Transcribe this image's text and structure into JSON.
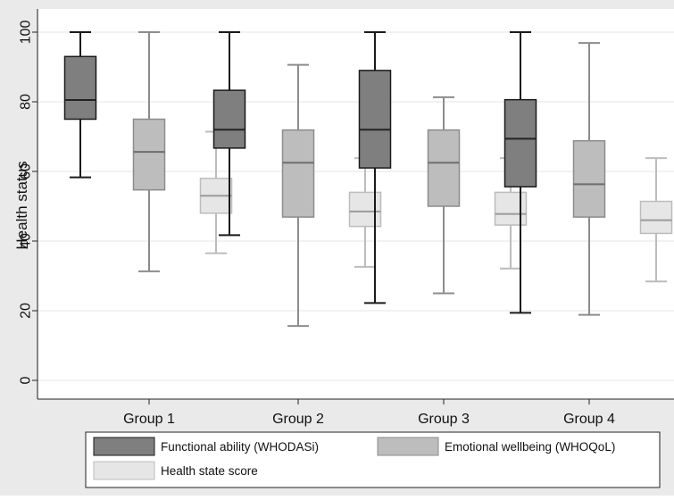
{
  "chart_data": {
    "type": "box",
    "ylabel": "Health status",
    "xlabel": "",
    "ylim": [
      0,
      100
    ],
    "yticks": [
      0,
      20,
      40,
      60,
      80,
      100
    ],
    "grid": true,
    "legend_position": "bottom",
    "categories": [
      "Group 1",
      "Group 2",
      "Group 3",
      "Group 4"
    ],
    "series": [
      {
        "name": "Functional ability (WHODASi)",
        "color": "#7f7f7f",
        "median_color": "#222222",
        "boxes": [
          {
            "min": 58.3,
            "q1": 75,
            "median": 80.5,
            "q3": 93,
            "max": 100
          },
          {
            "min": 41.7,
            "q1": 66.7,
            "median": 72,
            "q3": 83.3,
            "max": 100
          },
          {
            "min": 22.2,
            "q1": 61,
            "median": 72,
            "q3": 89,
            "max": 100
          },
          {
            "min": 19.4,
            "q1": 55.6,
            "median": 69.4,
            "q3": 80.6,
            "max": 100
          }
        ]
      },
      {
        "name": "Emotional wellbeing (WHOQoL)",
        "color": "#bdbdbd",
        "median_color": "#6e6e6e",
        "boxes": [
          {
            "min": 31.3,
            "q1": 54.7,
            "median": 65.6,
            "q3": 75,
            "max": 100
          },
          {
            "min": 15.6,
            "q1": 46.9,
            "median": 62.5,
            "q3": 71.9,
            "max": 90.6
          },
          {
            "min": 25,
            "q1": 50,
            "median": 62.5,
            "q3": 71.9,
            "max": 81.3
          },
          {
            "min": 18.8,
            "q1": 46.9,
            "median": 56.3,
            "q3": 68.8,
            "max": 96.9
          }
        ]
      },
      {
        "name": "Health state score",
        "color": "#e6e6e6",
        "median_color": "#9a9a9a",
        "boxes": [
          {
            "min": 36.5,
            "q1": 48,
            "median": 53,
            "q3": 58,
            "max": 71.4
          },
          {
            "min": 32.6,
            "q1": 44.2,
            "median": 48.5,
            "q3": 54,
            "max": 63.8
          },
          {
            "min": 32.1,
            "q1": 44.6,
            "median": 47.8,
            "q3": 54,
            "max": 63.8
          },
          {
            "min": 28.4,
            "q1": 42.2,
            "median": 46,
            "q3": 51.4,
            "max": 63.8
          }
        ]
      }
    ]
  }
}
